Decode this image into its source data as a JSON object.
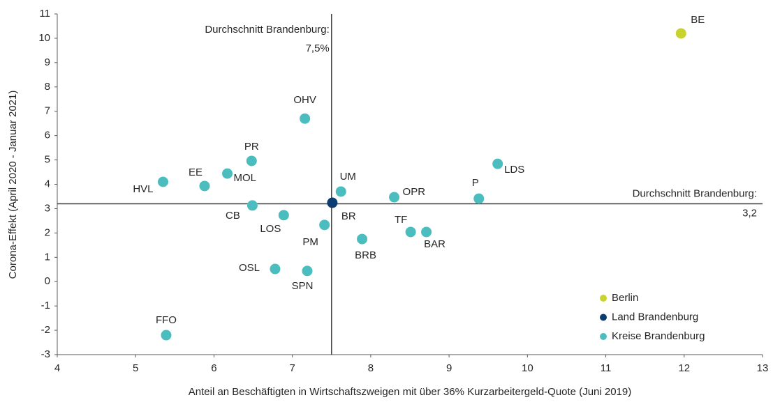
{
  "chart_data": {
    "type": "scatter",
    "x_label": "Anteil an Beschäftigten in Wirtschaftszweigen mit über 36% Kurzarbeitergeld-Quote (Juni 2019)",
    "y_label": "Corona-Effekt (April 2020 - Januar 2021)",
    "xlim": [
      4,
      13
    ],
    "ylim": [
      -3,
      11
    ],
    "xticks": [
      4,
      5,
      6,
      7,
      8,
      9,
      10,
      11,
      12,
      13
    ],
    "yticks": [
      -3,
      -2,
      -1,
      0,
      1,
      2,
      3,
      4,
      5,
      6,
      7,
      8,
      9,
      10,
      11
    ],
    "legend": "bottom-right",
    "series": [
      {
        "name": "Berlin",
        "color": "#c9d32e",
        "x": [
          11.96
        ],
        "values": [
          10.2
        ],
        "labels": [
          "BE"
        ]
      },
      {
        "name": "Land Brandenburg",
        "color": "#0b3c72",
        "x": [
          7.51
        ],
        "values": [
          3.24
        ],
        "labels": [
          "BR"
        ]
      },
      {
        "name": "Kreise Brandenburg",
        "color": "#4cbdbf",
        "x": [
          7.16,
          6.48,
          6.17,
          5.88,
          5.35,
          6.49,
          6.89,
          7.41,
          7.62,
          8.3,
          7.89,
          8.51,
          8.71,
          9.38,
          9.62,
          6.78,
          7.19,
          5.39
        ],
        "values": [
          6.7,
          4.96,
          4.44,
          3.93,
          4.1,
          3.13,
          2.73,
          2.33,
          3.7,
          3.47,
          1.75,
          2.04,
          2.04,
          3.41,
          4.84,
          0.52,
          0.44,
          -2.2
        ],
        "labels": [
          "OHV",
          "PR",
          "MOL",
          "EE",
          "HVL",
          "CB",
          "LOS",
          "PM",
          "UM",
          "OPR",
          "BRB",
          "TF",
          "BAR",
          "P",
          "LDS",
          "OSL",
          "SPN",
          "FFO"
        ]
      }
    ],
    "reference_lines": [
      {
        "axis": "x",
        "value": 7.5,
        "text": "Durchschnitt Brandenburg:",
        "label": "7,5%"
      },
      {
        "axis": "y",
        "value": 3.2,
        "text": "Durchschnitt Brandenburg:",
        "label": "3,2"
      }
    ]
  }
}
